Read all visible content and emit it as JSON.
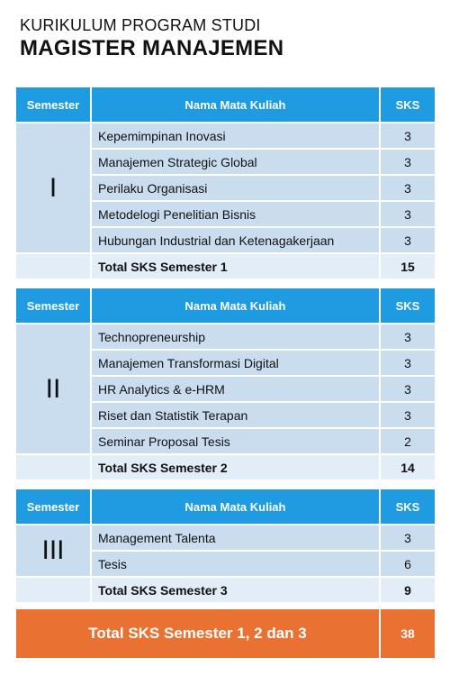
{
  "header": {
    "subtitle": "KURIKULUM PROGRAM STUDI",
    "title": "MAGISTER MANAJEMEN"
  },
  "table_headers": {
    "semester": "Semester",
    "course": "Nama Mata Kuliah",
    "credits": "SKS"
  },
  "semesters": [
    {
      "label": "I",
      "courses": [
        {
          "name": "Kepemimpinan Inovasi",
          "sks": "3"
        },
        {
          "name": "Manajemen Strategic Global",
          "sks": "3"
        },
        {
          "name": "Perilaku Organisasi",
          "sks": "3"
        },
        {
          "name": "Metodelogi Penelitian Bisnis",
          "sks": "3"
        },
        {
          "name": "Hubungan Industrial dan Ketenagakerjaan",
          "sks": "3"
        }
      ],
      "total_label": "Total SKS Semester 1",
      "total_sks": "15"
    },
    {
      "label": "II",
      "courses": [
        {
          "name": "Technopreneurship",
          "sks": "3"
        },
        {
          "name": "Manajemen Transformasi Digital",
          "sks": "3"
        },
        {
          "name": "HR Analytics & e-HRM",
          "sks": "3"
        },
        {
          "name": "Riset dan Statistik Terapan",
          "sks": "3"
        },
        {
          "name": "Seminar Proposal Tesis",
          "sks": "2"
        }
      ],
      "total_label": "Total SKS Semester 2",
      "total_sks": "14"
    },
    {
      "label": "III",
      "courses": [
        {
          "name": "Management Talenta",
          "sks": "3"
        },
        {
          "name": "Tesis",
          "sks": "6"
        }
      ],
      "total_label": "Total SKS Semester 3",
      "total_sks": "9"
    }
  ],
  "grand_total": {
    "label": "Total SKS Semester 1, 2 dan 3",
    "value": "38"
  },
  "colors": {
    "header_blue": "#1f9be1",
    "row_blue": "#c9ddef",
    "row_light": "#e3edf7",
    "total_orange": "#e97132"
  }
}
